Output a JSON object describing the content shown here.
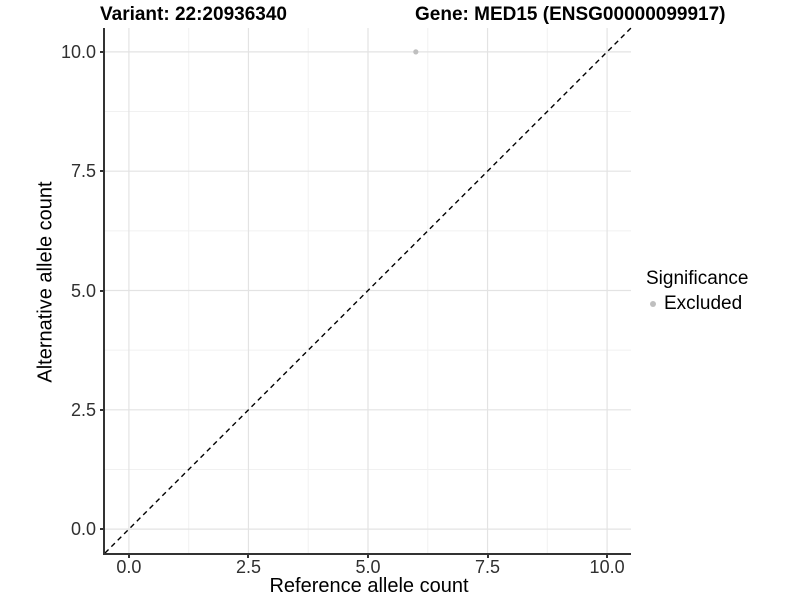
{
  "titles": {
    "variant": "Variant: 22:20936340",
    "gene": "Gene: MED15 (ENSG00000099917)"
  },
  "axes": {
    "x": {
      "label": "Reference allele count",
      "tick_labels": [
        "0.0",
        "2.5",
        "5.0",
        "7.5",
        "10.0"
      ]
    },
    "y": {
      "label": "Alternative allele count",
      "tick_labels": [
        "0.0",
        "2.5",
        "5.0",
        "7.5",
        "10.0"
      ]
    }
  },
  "legend": {
    "title": "Significance",
    "items": [
      {
        "label": "Excluded",
        "marker": "circle-icon",
        "color": "#bfbfbf"
      }
    ]
  },
  "colors": {
    "excluded_point": "#bfbfbf",
    "major_grid": "#e3e3e3",
    "minor_grid": "#f1f1f1",
    "axis_line": "#333333",
    "reference_line": "#000000"
  },
  "chart_data": {
    "type": "scatter",
    "title": "Variant: 22:20936340 | Gene: MED15 (ENSG00000099917)",
    "xlabel": "Reference allele count",
    "ylabel": "Alternative allele count",
    "xlim": [
      -0.5,
      10.5
    ],
    "ylim": [
      -0.5,
      10.5
    ],
    "x_major_ticks": [
      0,
      2.5,
      5,
      7.5,
      10
    ],
    "y_major_ticks": [
      0,
      2.5,
      5,
      7.5,
      10
    ],
    "x_minor_ticks": [
      1.25,
      3.75,
      6.25,
      8.75
    ],
    "y_minor_ticks": [
      1.25,
      3.75,
      6.25,
      8.75
    ],
    "grid": "major and minor, light gray on white",
    "legend_position": "right",
    "series": [
      {
        "name": "Excluded",
        "color": "#bfbfbf",
        "points": [
          {
            "x": 6,
            "y": 10
          }
        ]
      }
    ],
    "reference_line": {
      "kind": "identity (y = x)",
      "style": "dashed",
      "color": "#000000",
      "from": {
        "x": -0.5,
        "y": -0.5
      },
      "to": {
        "x": 10.5,
        "y": 10.5
      }
    }
  }
}
